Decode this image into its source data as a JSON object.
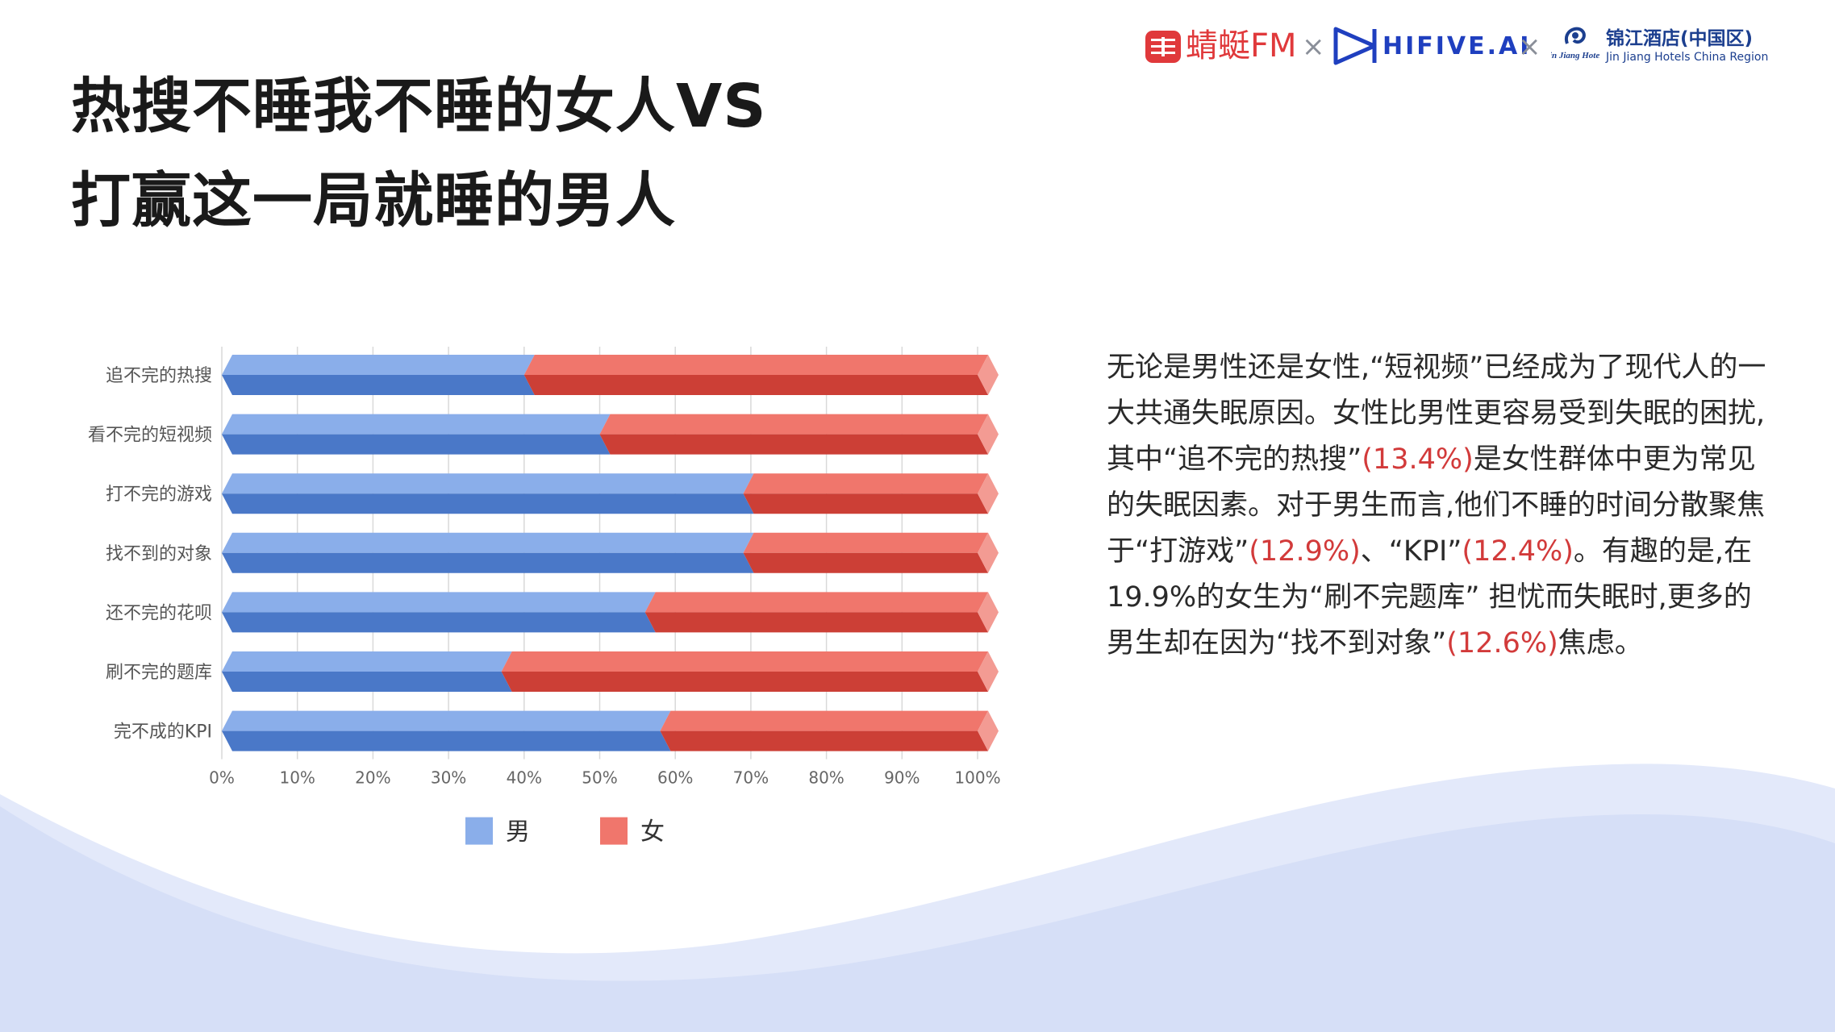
{
  "title": {
    "line1": "热搜不睡我不睡的女人VS",
    "line2": "打赢这一局就睡的男人"
  },
  "logos": {
    "fm_text": "蜻蜓FM",
    "times_symbol": "×",
    "hifive_text": "HIFIVE.AI",
    "jinjiang_cn": "锦江酒店(中国区)",
    "jinjiang_en": "Jin Jiang Hotels China Region",
    "jinjiang_mark_text": "Jin Jiang Hotels"
  },
  "colors": {
    "male": "#8aaeea",
    "male_dark": "#4a78c8",
    "female": "#f0766c",
    "female_dark": "#cc3f36",
    "highlight": "#d23a3a",
    "wave": "#dbe3f8"
  },
  "chart_data": {
    "type": "bar",
    "orientation": "horizontal",
    "stacked": "percent",
    "categories": [
      "追不完的热搜",
      "看不完的短视频",
      "打不完的游戏",
      "找不到的对象",
      "还不完的花呗",
      "刷不完的题库",
      "完不成的KPI"
    ],
    "series": [
      {
        "name": "男",
        "values": [
          40,
          50,
          69,
          69,
          56,
          37,
          58
        ]
      },
      {
        "name": "女",
        "values": [
          60,
          50,
          31,
          31,
          44,
          63,
          42
        ]
      }
    ],
    "x_ticks": [
      "0%",
      "10%",
      "20%",
      "30%",
      "40%",
      "50%",
      "60%",
      "70%",
      "80%",
      "90%",
      "100%"
    ],
    "xlim": [
      0,
      100
    ],
    "grid": true,
    "legend_position": "bottom"
  },
  "paragraph": [
    {
      "text": "无论是男性还是女性,“短视频”已经成为了现代人的一大共通失眠原因。女性比男性更容易受到失眠的困扰,其中“追不完的热搜”"
    },
    {
      "text": "(13.4%)",
      "highlight": true
    },
    {
      "text": "是女性群体中更为常见的失眠因素。对于男生而言,他们不睡的时间分散聚焦于“打游戏”"
    },
    {
      "text": "(12.9%)",
      "highlight": true
    },
    {
      "text": "、“KPI”"
    },
    {
      "text": "(12.4%)",
      "highlight": true
    },
    {
      "text": "。有趣的是,在19.9%的女生为“刷不完题库” 担忧而失眠时,更多的男生却在因为“找不到对象”"
    },
    {
      "text": "(12.6%)",
      "highlight": true
    },
    {
      "text": "焦虑。"
    }
  ]
}
